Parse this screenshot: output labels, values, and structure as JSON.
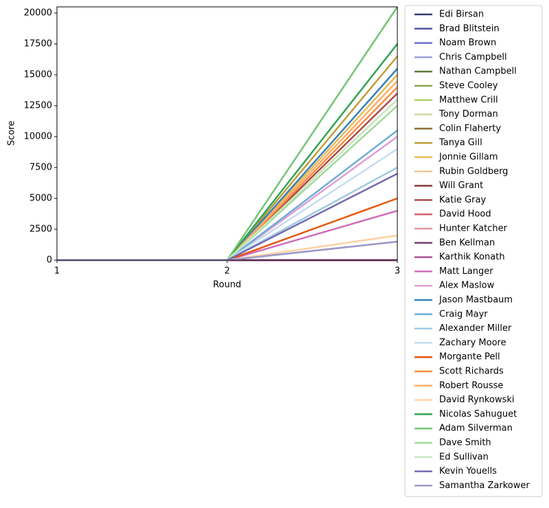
{
  "chart_data": {
    "type": "line",
    "x_label": "Round",
    "y_label": "Score",
    "x": [
      1,
      2,
      3
    ],
    "xlim": [
      1,
      3
    ],
    "xticks": [
      1,
      2,
      3
    ],
    "ylim": [
      0,
      20500
    ],
    "yticks": [
      0,
      2500,
      5000,
      7500,
      10000,
      12500,
      15000,
      17500,
      20000
    ],
    "legend": "outside-right",
    "series": [
      {
        "name": "Edi Birsan",
        "color": "#393b79",
        "values": [
          0,
          0,
          0
        ]
      },
      {
        "name": "Brad Blitstein",
        "color": "#5254a3",
        "values": [
          0,
          0,
          0
        ]
      },
      {
        "name": "Noam Brown",
        "color": "#6b6ecf",
        "values": [
          0,
          0,
          0
        ]
      },
      {
        "name": "Chris Campbell",
        "color": "#9c9ede",
        "values": [
          0,
          0,
          1500
        ]
      },
      {
        "name": "Nathan Campbell",
        "color": "#637939",
        "values": [
          0,
          0,
          0
        ]
      },
      {
        "name": "Steve Cooley",
        "color": "#8ca252",
        "values": [
          0,
          0,
          0
        ]
      },
      {
        "name": "Matthew Crill",
        "color": "#b5cf6b",
        "values": [
          0,
          0,
          0
        ]
      },
      {
        "name": "Tony Dorman",
        "color": "#cedb9c",
        "values": [
          0,
          0,
          0
        ]
      },
      {
        "name": "Colin Flaherty",
        "color": "#8c6d31",
        "values": [
          0,
          0,
          0
        ]
      },
      {
        "name": "Tanya Gill",
        "color": "#bd9e39",
        "values": [
          0,
          0,
          16500
        ]
      },
      {
        "name": "Jonnie Gillam",
        "color": "#e7ba52",
        "values": [
          0,
          0,
          15000
        ]
      },
      {
        "name": "Rubin Goldberg",
        "color": "#e7cb94",
        "values": [
          0,
          0,
          0
        ]
      },
      {
        "name": "Will Grant",
        "color": "#843c39",
        "values": [
          0,
          0,
          0
        ]
      },
      {
        "name": "Katie Gray",
        "color": "#ad494a",
        "values": [
          0,
          0,
          13500
        ]
      },
      {
        "name": "David Hood",
        "color": "#d6616b",
        "values": [
          0,
          0,
          0
        ]
      },
      {
        "name": "Hunter Katcher",
        "color": "#e7969c",
        "values": [
          0,
          0,
          13000
        ]
      },
      {
        "name": "Ben Kellman",
        "color": "#7b4173",
        "values": [
          0,
          0,
          0
        ]
      },
      {
        "name": "Karthik Konath",
        "color": "#a55194",
        "values": [
          0,
          0,
          0
        ]
      },
      {
        "name": "Matt Langer",
        "color": "#ce6dbd",
        "values": [
          0,
          0,
          4000
        ]
      },
      {
        "name": "Alex Maslow",
        "color": "#de9ed6",
        "values": [
          0,
          0,
          10000
        ]
      },
      {
        "name": "Jason Mastbaum",
        "color": "#3182bd",
        "values": [
          0,
          0,
          15500
        ]
      },
      {
        "name": "Craig Mayr",
        "color": "#6baed6",
        "values": [
          0,
          0,
          10500
        ]
      },
      {
        "name": "Alexander Miller",
        "color": "#9ecae1",
        "values": [
          0,
          0,
          7500
        ]
      },
      {
        "name": "Zachary Moore",
        "color": "#c6dbef",
        "values": [
          0,
          0,
          9000
        ]
      },
      {
        "name": "Morgante Pell",
        "color": "#e6550d",
        "values": [
          0,
          0,
          5000
        ]
      },
      {
        "name": "Scott Richards",
        "color": "#fd8d3c",
        "values": [
          0,
          0,
          14000
        ]
      },
      {
        "name": "Robert Rousse",
        "color": "#fdae6b",
        "values": [
          0,
          0,
          14500
        ]
      },
      {
        "name": "David Rynkowski",
        "color": "#fdd0a2",
        "values": [
          0,
          0,
          2000
        ]
      },
      {
        "name": "Nicolas Sahuguet",
        "color": "#31a354",
        "values": [
          0,
          0,
          17500
        ]
      },
      {
        "name": "Adam Silverman",
        "color": "#74c476",
        "values": [
          0,
          0,
          20500
        ]
      },
      {
        "name": "Dave Smith",
        "color": "#a1d99b",
        "values": [
          0,
          0,
          12500
        ]
      },
      {
        "name": "Ed Sullivan",
        "color": "#c7e9c0",
        "values": [
          0,
          0,
          13000
        ]
      },
      {
        "name": "Kevin Youells",
        "color": "#756bb1",
        "values": [
          0,
          0,
          7000
        ]
      },
      {
        "name": "Samantha Zarkower",
        "color": "#9e9ac8",
        "values": [
          0,
          0,
          1500
        ]
      }
    ]
  }
}
